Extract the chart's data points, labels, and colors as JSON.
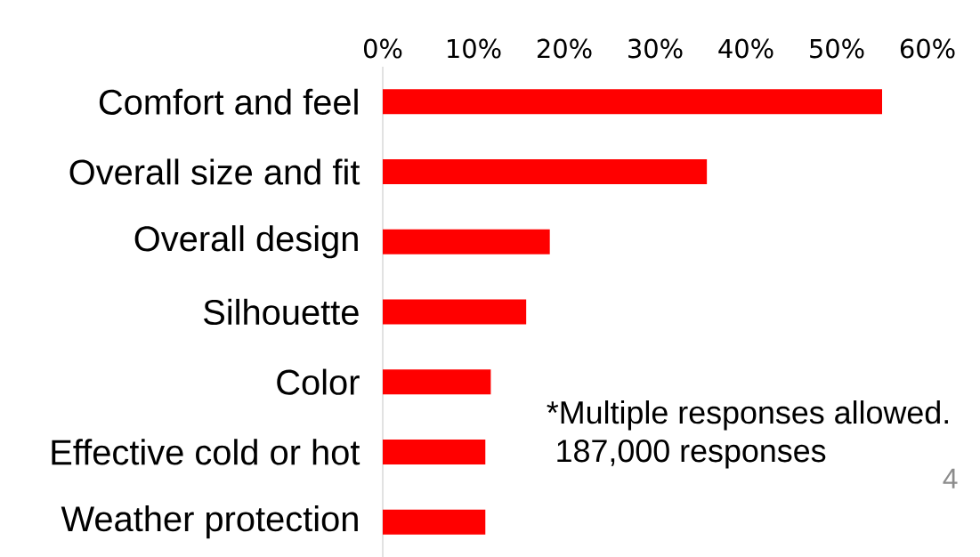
{
  "chart_data": {
    "type": "bar",
    "orientation": "horizontal",
    "categories": [
      "Comfort and feel",
      "Overall size and fit",
      "Overall design",
      "Silhouette",
      "Color",
      "Effective cold or hot",
      "Weather protection"
    ],
    "values": [
      55.0,
      35.7,
      18.4,
      15.8,
      11.9,
      11.3,
      11.3
    ],
    "color": "#ff0000",
    "xlim": [
      0,
      60
    ],
    "xticks": [
      {
        "value": 0,
        "label": "0%"
      },
      {
        "value": 10,
        "label": "10%"
      },
      {
        "value": 20,
        "label": "20%"
      },
      {
        "value": 30,
        "label": "30%"
      },
      {
        "value": 40,
        "label": "40%"
      },
      {
        "value": 50,
        "label": "50%"
      },
      {
        "value": 60,
        "label": "60%"
      }
    ],
    "annotations": [
      "*Multiple responses allowed.",
      "187,000 responses",
      "4"
    ]
  }
}
